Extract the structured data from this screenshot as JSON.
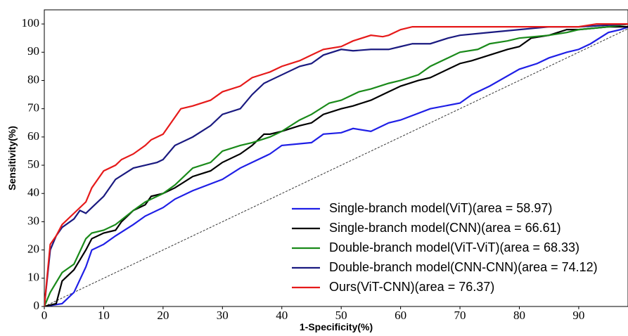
{
  "chart_data": {
    "type": "line",
    "xlabel": "1-Specificity(%)",
    "ylabel": "Sensitivity(%)",
    "xlim": [
      0,
      98.3
    ],
    "ylim": [
      0,
      105
    ],
    "xticks": [
      0,
      10,
      20,
      30,
      40,
      50,
      60,
      70,
      80,
      90
    ],
    "yticks": [
      0,
      10,
      20,
      30,
      40,
      50,
      60,
      70,
      80,
      90,
      100
    ],
    "legend": "lower right",
    "diagonal": {
      "x": [
        0,
        100
      ],
      "values": [
        0,
        100
      ],
      "color": "#333333"
    },
    "series": [
      {
        "name": "Single-branch model(ViT)(area = 58.97)",
        "color": "#1f1fe6",
        "x": [
          0,
          3,
          5,
          7,
          8,
          10,
          12,
          15,
          17,
          20,
          22,
          25,
          30,
          33,
          35,
          38,
          40,
          45,
          47,
          50,
          52,
          55,
          58,
          60,
          65,
          70,
          72,
          75,
          80,
          83,
          85,
          88,
          90,
          92,
          95,
          97,
          98.5
        ],
        "values": [
          0,
          1,
          5,
          14,
          20,
          22,
          25,
          29,
          32,
          35,
          38,
          41,
          45,
          49,
          51,
          54,
          57,
          58,
          61,
          61.5,
          63,
          62,
          65,
          66,
          70,
          72,
          75,
          78,
          84,
          86,
          88,
          90,
          91,
          93,
          97,
          98,
          99
        ]
      },
      {
        "name": "Single-branch model(CNN)(area = 66.61)",
        "color": "#000000",
        "x": [
          0,
          2,
          3,
          5,
          7,
          8,
          10,
          12,
          13,
          15,
          17,
          18,
          20,
          22,
          25,
          28,
          30,
          33,
          35,
          37,
          38,
          40,
          43,
          45,
          47,
          50,
          52,
          55,
          58,
          60,
          63,
          65,
          68,
          70,
          72,
          75,
          78,
          80,
          82,
          85,
          88,
          90,
          95,
          98.5
        ],
        "values": [
          0,
          1,
          9,
          13,
          20,
          24,
          26,
          27,
          30,
          34,
          36,
          39,
          40,
          42,
          46,
          48,
          51,
          54,
          57,
          61,
          61,
          62,
          64,
          65,
          68,
          70,
          71,
          73,
          76,
          78,
          80,
          81,
          84,
          86,
          87,
          89,
          91,
          92,
          95,
          96,
          98,
          98,
          99,
          99
        ]
      },
      {
        "name": "Double-branch model(ViT-ViT)(area = 68.33)",
        "color": "#1a8a1a",
        "x": [
          0,
          1,
          3,
          5,
          7,
          8,
          10,
          12,
          15,
          17,
          20,
          22,
          25,
          28,
          30,
          33,
          35,
          38,
          40,
          43,
          45,
          48,
          50,
          53,
          55,
          58,
          60,
          63,
          65,
          68,
          70,
          73,
          75,
          78,
          80,
          85,
          88,
          90,
          95,
          98.5
        ],
        "values": [
          0,
          5,
          12,
          15,
          24,
          26,
          27,
          29,
          34,
          37,
          40,
          43,
          49,
          51,
          55,
          57,
          58,
          60,
          62,
          66,
          68,
          72,
          73,
          76,
          77,
          79,
          80,
          82,
          85,
          88,
          90,
          91,
          93,
          94,
          95,
          96,
          97,
          98,
          99,
          100
        ]
      },
      {
        "name": "Double-branch model(CNN-CNN)(area = 74.12)",
        "color": "#1a1a80",
        "x": [
          0,
          1,
          2,
          3,
          5,
          6,
          7,
          8,
          10,
          12,
          15,
          17,
          19,
          20,
          22,
          25,
          28,
          30,
          33,
          35,
          37,
          40,
          43,
          45,
          47,
          50,
          52,
          55,
          58,
          60,
          62,
          65,
          68,
          70,
          75,
          80,
          85,
          90,
          98.5
        ],
        "values": [
          0,
          20,
          25,
          28,
          31,
          34,
          33,
          35,
          39,
          45,
          49,
          50,
          51,
          52,
          57,
          60,
          64,
          68,
          70,
          75,
          79,
          82,
          85,
          86,
          89,
          91,
          90.5,
          91,
          91,
          92,
          93,
          93,
          95,
          96,
          97,
          98,
          99,
          99,
          100
        ]
      },
      {
        "name": "Ours(ViT-CNN)(area = 76.37)",
        "color": "#e61a1a",
        "x": [
          0,
          1,
          2,
          3,
          5,
          7,
          8,
          10,
          12,
          13,
          15,
          17,
          18,
          20,
          22,
          23,
          25,
          28,
          30,
          33,
          35,
          38,
          40,
          43,
          45,
          47,
          50,
          52,
          55,
          57,
          58,
          60,
          62,
          65,
          70,
          80,
          90,
          93,
          98.5
        ],
        "values": [
          0,
          22,
          25,
          29,
          33,
          37,
          42,
          48,
          50,
          52,
          54,
          57,
          59,
          61,
          67,
          70,
          71,
          73,
          76,
          78,
          81,
          83,
          85,
          87,
          89,
          91,
          92,
          94,
          96,
          95.5,
          96,
          98,
          99,
          99,
          99,
          99,
          99,
          100,
          100
        ]
      }
    ]
  }
}
